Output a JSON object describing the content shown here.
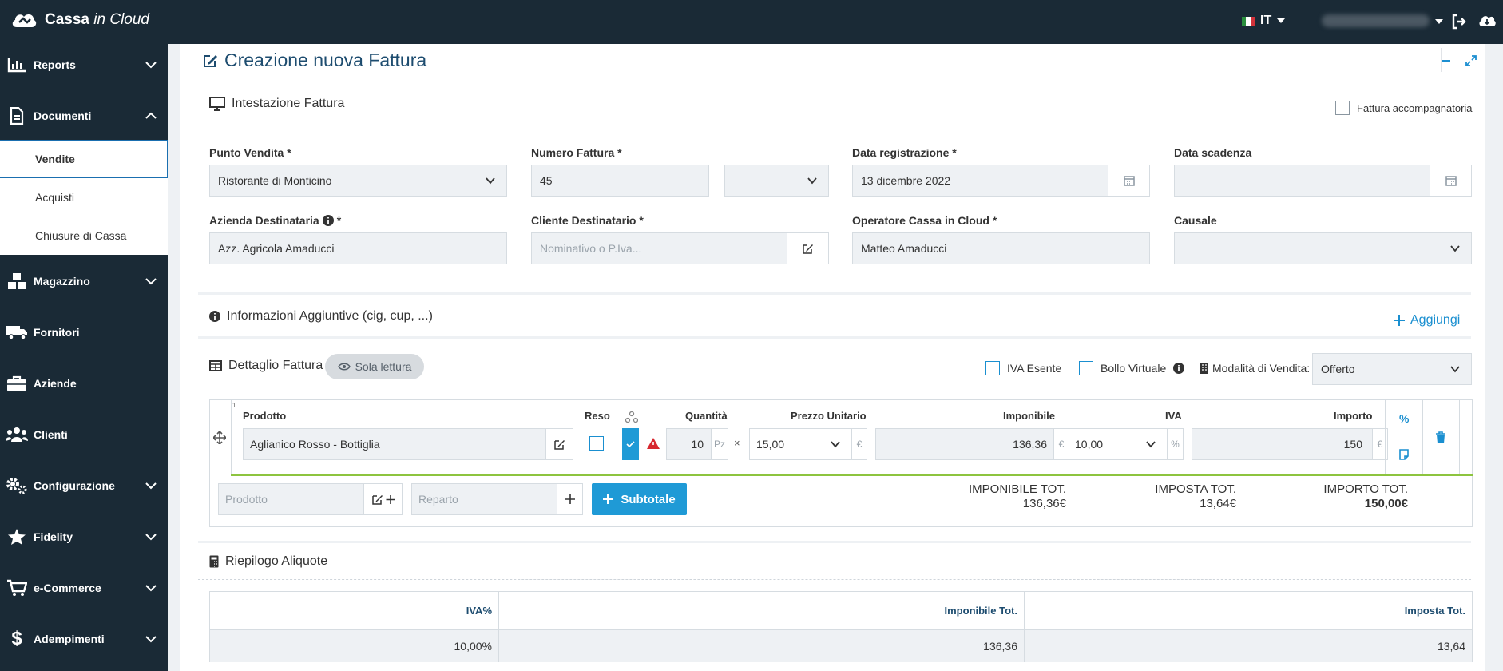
{
  "topbar": {
    "logo_bold": "Cassa",
    "logo_italic": " in Cloud",
    "language": "IT"
  },
  "sidebar": {
    "items": [
      {
        "label": "Reports",
        "icon": "chart-bar-icon"
      },
      {
        "label": "Documenti",
        "icon": "document-icon"
      },
      {
        "label": "Magazzino",
        "icon": "boxes-icon"
      },
      {
        "label": "Fornitori",
        "icon": "truck-icon"
      },
      {
        "label": "Aziende",
        "icon": "briefcase-icon"
      },
      {
        "label": "Clienti",
        "icon": "users-icon"
      },
      {
        "label": "Configurazione",
        "icon": "gears-icon"
      },
      {
        "label": "Fidelity",
        "icon": "star-icon"
      },
      {
        "label": "e-Commerce",
        "icon": "cart-icon"
      },
      {
        "label": "Adempimenti",
        "icon": "dollar-icon"
      }
    ],
    "subitems": [
      "Vendite",
      "Acquisti",
      "Chiusure di Cassa"
    ]
  },
  "page": {
    "title": "Creazione nuova Fattura"
  },
  "intestazione": {
    "title": "Intestazione Fattura",
    "accompagnatoria": "Fattura accompagnatoria",
    "punto_vendita_label": "Punto Vendita *",
    "punto_vendita_value": "Ristorante di Monticino",
    "numero_label": "Numero Fattura *",
    "numero_value": "45",
    "data_reg_label": "Data registrazione *",
    "data_reg_value": "13 dicembre 2022",
    "data_scad_label": "Data scadenza",
    "azienda_label": "Azienda Destinataria",
    "azienda_star": "*",
    "azienda_value": "Azz. Agricola Amaducci",
    "cliente_label": "Cliente Destinatario *",
    "cliente_placeholder": "Nominativo o P.Iva...",
    "operatore_label": "Operatore Cassa in Cloud *",
    "operatore_value": "Matteo Amaducci",
    "causale_label": "Causale"
  },
  "info_aggiuntive": {
    "title": "Informazioni Aggiuntive (cig, cup, ...)",
    "add_label": "Aggiungi"
  },
  "dettaglio": {
    "title": "Dettaglio Fattura",
    "readonly_label": "Sola lettura",
    "iva_esente": "IVA Esente",
    "bollo_virtuale": "Bollo Virtuale",
    "modalita_label": "Modalità di Vendita:",
    "modalita_value": "Offerto",
    "row_index": "1",
    "columns": {
      "prodotto": "Prodotto",
      "reso": "Reso",
      "quantita": "Quantità",
      "prezzo": "Prezzo Unitario",
      "imponibile": "Imponibile",
      "iva": "IVA",
      "importo": "Importo"
    },
    "row": {
      "prodotto": "Aglianico Rosso - Bottiglia",
      "quantita": "10",
      "unit_qty": "Pz",
      "times": "×",
      "prezzo": "15,00",
      "currency": "€",
      "imponibile": "136,36",
      "iva": "10,00",
      "percent": "%",
      "importo": "150",
      "percent_link": "%"
    },
    "add_prodotto_placeholder": "Prodotto",
    "add_reparto_placeholder": "Reparto",
    "subtotale_label": "Subtotale",
    "totals": {
      "imponibile_label": "IMPONIBILE TOT.",
      "imponibile_value": "136,36€",
      "imposta_label": "IMPOSTA TOT.",
      "imposta_value": "13,64€",
      "importo_label": "IMPORTO TOT.",
      "importo_value": "150,00€"
    }
  },
  "riepilogo": {
    "title": "Riepilogo Aliquote",
    "headers": [
      "IVA%",
      "Imponibile Tot.",
      "Imposta Tot."
    ],
    "row": [
      "10,00%",
      "136,36",
      "13,64"
    ]
  },
  "colors": {
    "sidebar_bg": "#1a2a36",
    "accent": "#1f9ad6",
    "title": "#1d4c6f",
    "green": "#8dc43f"
  }
}
